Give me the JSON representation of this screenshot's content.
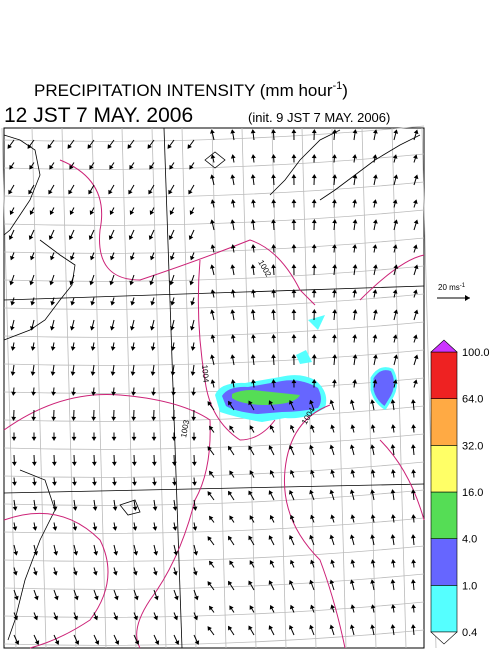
{
  "header": {
    "title": "PRECIPITATION INTENSITY (mm hour",
    "title_sup": "-1",
    "title_end": ")",
    "valid_time": "12 JST 7 MAY. 2006",
    "init_time": "(init. 9 JST 7 MAY. 2006)"
  },
  "wind_scale": {
    "label": "20 ms",
    "label_sup": "-1"
  },
  "contour_labels": [
    "1002",
    "1004",
    "1003",
    "1004"
  ],
  "colorbar": {
    "levels": [
      0.4,
      {
        "value": 1,
        "label": "1.0"
      },
      {
        "value": 4,
        "label": "4.0"
      },
      {
        "value": 16,
        "label": "16.0"
      },
      {
        "value": 32,
        "label": "32.0"
      },
      {
        "value": 64,
        "label": "64.0"
      },
      {
        "value": 100,
        "label": "100.0"
      }
    ],
    "colors": [
      "#55ffff",
      "#6666ff",
      "#55dd55",
      "#ffff66",
      "#ffaa44",
      "#ee2222"
    ],
    "over_color": "#cc33ff",
    "under_color": "#ffffff"
  }
}
